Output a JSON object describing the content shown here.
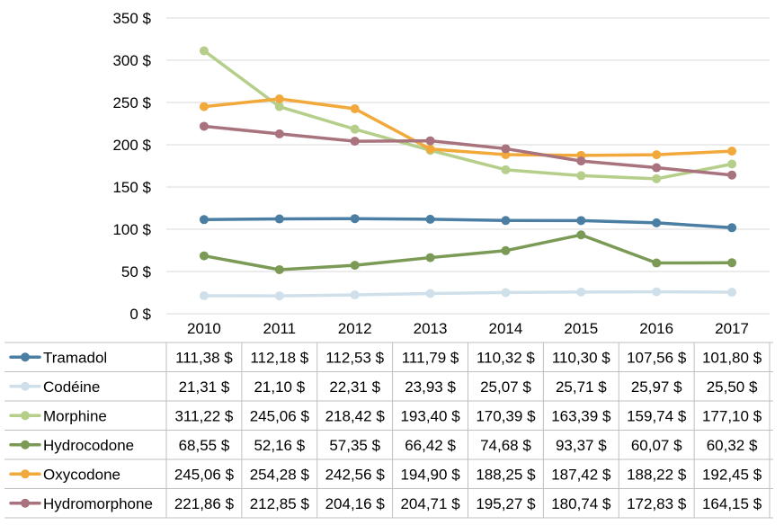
{
  "chart_data": {
    "type": "line",
    "title": "",
    "xlabel": "",
    "ylabel": "",
    "ylim": [
      0,
      350
    ],
    "y_ticks": [
      "0 $",
      "50 $",
      "100 $",
      "150 $",
      "200 $",
      "250 $",
      "300 $",
      "350 $"
    ],
    "y_tick_values": [
      0,
      50,
      100,
      150,
      200,
      250,
      300,
      350
    ],
    "grid": true,
    "legend": "data-table-below",
    "categories": [
      "2010",
      "2011",
      "2012",
      "2013",
      "2014",
      "2015",
      "2016",
      "2017"
    ],
    "series": [
      {
        "name": "Tramadol",
        "color": "#4a7fa3",
        "values": [
          111.38,
          112.18,
          112.53,
          111.79,
          110.32,
          110.3,
          107.56,
          101.8
        ],
        "labels": [
          "111,38 $",
          "112,18 $",
          "112,53 $",
          "111,79 $",
          "110,32 $",
          "110,30 $",
          "107,56 $",
          "101,80 $"
        ]
      },
      {
        "name": "Codéine",
        "color": "#cfe0ea",
        "values": [
          21.31,
          21.1,
          22.31,
          23.93,
          25.07,
          25.71,
          25.97,
          25.5
        ],
        "labels": [
          "21,31 $",
          "21,10 $",
          "22,31 $",
          "23,93 $",
          "25,07 $",
          "25,71 $",
          "25,97 $",
          "25,50 $"
        ]
      },
      {
        "name": "Morphine",
        "color": "#b5cf8a",
        "values": [
          311.22,
          245.06,
          218.42,
          193.4,
          170.39,
          163.39,
          159.74,
          177.1
        ],
        "labels": [
          "311,22 $",
          "245,06 $",
          "218,42 $",
          "193,40 $",
          "170,39 $",
          "163,39 $",
          "159,74 $",
          "177,10 $"
        ]
      },
      {
        "name": "Hydrocodone",
        "color": "#7a9a55",
        "values": [
          68.55,
          52.16,
          57.35,
          66.42,
          74.68,
          93.37,
          60.07,
          60.32
        ],
        "labels": [
          "68,55 $",
          "52,16 $",
          "57,35 $",
          "66,42 $",
          "74,68 $",
          "93,37 $",
          "60,07 $",
          "60,32 $"
        ]
      },
      {
        "name": "Oxycodone",
        "color": "#f2a93b",
        "values": [
          245.06,
          254.28,
          242.56,
          194.9,
          188.25,
          187.42,
          188.22,
          192.45
        ],
        "labels": [
          "245,06 $",
          "254,28 $",
          "242,56 $",
          "194,90 $",
          "188,25 $",
          "187,42 $",
          "188,22 $",
          "192,45 $"
        ]
      },
      {
        "name": "Hydromorphone",
        "color": "#a8737d",
        "values": [
          221.86,
          212.85,
          204.16,
          204.71,
          195.27,
          180.74,
          172.83,
          164.15
        ],
        "labels": [
          "221,86 $",
          "212,85 $",
          "204,16 $",
          "204,71 $",
          "195,27 $",
          "180,74 $",
          "172,83 $",
          "164,15 $"
        ]
      }
    ]
  },
  "colors": {
    "grid": "#d9d9d9",
    "table_border": "#bfbfbf",
    "text": "#000000"
  }
}
